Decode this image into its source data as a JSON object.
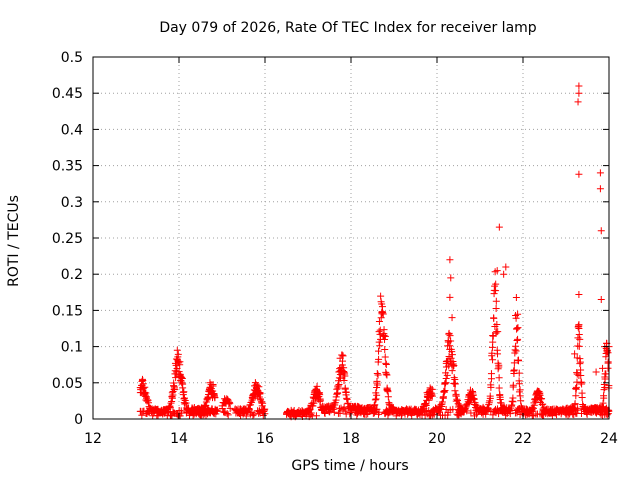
{
  "chart_data": {
    "type": "scatter",
    "title": "Day 079 of 2026, Rate Of TEC Index for receiver lamp",
    "xlabel": "GPS time / hours",
    "ylabel": "ROTI / TECUs",
    "xlim": [
      12,
      24
    ],
    "ylim": [
      0,
      0.5
    ],
    "xticks": [
      "12",
      "14",
      "16",
      "18",
      "20",
      "22",
      "24"
    ],
    "yticks": [
      "0",
      "0.05",
      "0.1",
      "0.15",
      "0.2",
      "0.25",
      "0.3",
      "0.35",
      "0.4",
      "0.45",
      "0.5"
    ],
    "grid": true,
    "marker": "+",
    "color": "#ff0000",
    "series": [
      {
        "name": "ROTI",
        "segments": [
          {
            "x0": 13.1,
            "x1": 13.5,
            "base": 0.008,
            "peakX": 13.15,
            "peakY": 0.042,
            "width": 0.12
          },
          {
            "x0": 13.5,
            "x1": 14.9,
            "base": 0.008,
            "peakX": 13.98,
            "peakY": 0.088,
            "width": 0.12
          },
          {
            "x0": 14.3,
            "x1": 14.85,
            "base": 0.01,
            "peakX": 14.75,
            "peakY": 0.038,
            "width": 0.1
          },
          {
            "x0": 15.0,
            "x1": 15.2,
            "base": 0.008,
            "peakX": 15.1,
            "peakY": 0.02,
            "width": 0.1
          },
          {
            "x0": 15.3,
            "x1": 16.0,
            "base": 0.008,
            "peakX": 15.8,
            "peakY": 0.04,
            "width": 0.12
          },
          {
            "x0": 16.5,
            "x1": 17.3,
            "base": 0.006,
            "peakX": 17.2,
            "peakY": 0.035,
            "width": 0.12
          },
          {
            "x0": 17.3,
            "x1": 18.2,
            "base": 0.012,
            "peakX": 17.78,
            "peakY": 0.08,
            "width": 0.1
          },
          {
            "x0": 18.1,
            "x1": 19.0,
            "base": 0.01,
            "peakX": 18.72,
            "peakY": 0.178,
            "width": 0.1
          },
          {
            "x0": 18.8,
            "x1": 19.9,
            "base": 0.008,
            "peakX": 19.85,
            "peakY": 0.035,
            "width": 0.12
          },
          {
            "x0": 19.9,
            "x1": 20.6,
            "base": 0.01,
            "peakX": 20.3,
            "peakY": 0.11,
            "width": 0.12
          },
          {
            "x0": 20.5,
            "x1": 21.0,
            "base": 0.008,
            "peakX": 20.8,
            "peakY": 0.03,
            "width": 0.1
          },
          {
            "x0": 21.0,
            "x1": 21.6,
            "base": 0.01,
            "peakX": 21.35,
            "peakY": 0.2,
            "width": 0.08
          },
          {
            "x0": 21.5,
            "x1": 22.0,
            "base": 0.01,
            "peakX": 21.85,
            "peakY": 0.16,
            "width": 0.06
          },
          {
            "x0": 22.0,
            "x1": 23.1,
            "base": 0.008,
            "peakX": 22.35,
            "peakY": 0.03,
            "width": 0.1
          },
          {
            "x0": 23.0,
            "x1": 24.0,
            "base": 0.01,
            "peakX": 23.3,
            "peakY": 0.12,
            "width": 0.06
          },
          {
            "x0": 23.6,
            "x1": 24.0,
            "base": 0.01,
            "peakX": 23.95,
            "peakY": 0.1,
            "width": 0.06
          }
        ],
        "spikes": [
          [
            20.3,
            0.22
          ],
          [
            20.32,
            0.195
          ],
          [
            20.3,
            0.168
          ],
          [
            20.35,
            0.14
          ],
          [
            21.45,
            0.265
          ],
          [
            21.6,
            0.21
          ],
          [
            21.55,
            0.2
          ],
          [
            21.4,
            0.205
          ],
          [
            23.3,
            0.46
          ],
          [
            23.3,
            0.45
          ],
          [
            23.28,
            0.438
          ],
          [
            23.3,
            0.338
          ],
          [
            23.8,
            0.34
          ],
          [
            23.8,
            0.318
          ],
          [
            23.82,
            0.26
          ],
          [
            23.3,
            0.172
          ],
          [
            23.82,
            0.165
          ],
          [
            23.9,
            0.1
          ],
          [
            24.0,
            0.1
          ],
          [
            23.3,
            0.125
          ],
          [
            23.32,
            0.11
          ],
          [
            23.95,
            0.095
          ],
          [
            23.85,
            0.07
          ],
          [
            23.7,
            0.065
          ],
          [
            23.3,
            0.06
          ],
          [
            23.2,
            0.09
          ]
        ]
      }
    ]
  }
}
